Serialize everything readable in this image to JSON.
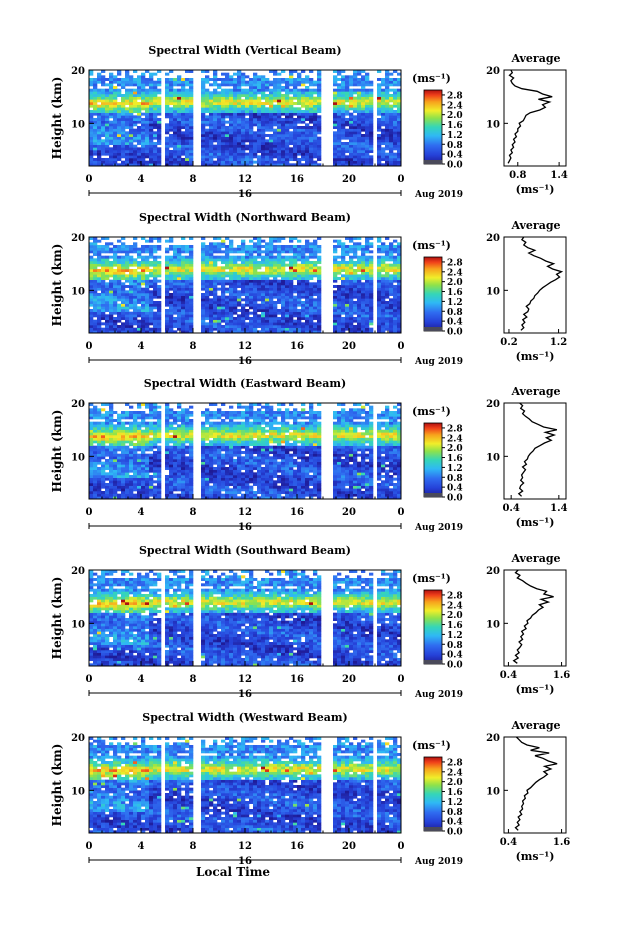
{
  "chart_data": [
    {
      "type": "heatmap",
      "title": "Spectral Width (Vertical Beam)",
      "ylabel": "Height (km)",
      "ylim": [
        2,
        20
      ],
      "yticks": [
        "20",
        "10"
      ],
      "xlim": [
        0,
        24
      ],
      "xticks": [
        "0",
        "4",
        "8",
        "12",
        "16",
        "20",
        "0"
      ],
      "date_label": "16",
      "month_label": "Aug 2019",
      "colorbar": {
        "unit": "(ms⁻¹)",
        "ticks": [
          "2.8",
          "2.4",
          "2.0",
          "1.6",
          "1.2",
          "0.8",
          "0.4",
          "0.0"
        ],
        "range": [
          0,
          3.0
        ]
      },
      "data_gaps_hours": [
        [
          5.4,
          5.9
        ],
        [
          7.9,
          8.5
        ],
        [
          18.0,
          18.7
        ],
        [
          21.7,
          22.2
        ]
      ],
      "average": {
        "title": "Average",
        "xticks": [
          "0.8",
          "1.4"
        ],
        "xlim": [
          0.6,
          1.5
        ],
        "xlabel": "(ms⁻¹)",
        "profile": [
          [
            2.5,
            0.66
          ],
          [
            3,
            0.68
          ],
          [
            3.5,
            0.7
          ],
          [
            4,
            0.68
          ],
          [
            4.5,
            0.72
          ],
          [
            5,
            0.7
          ],
          [
            5.5,
            0.74
          ],
          [
            6,
            0.72
          ],
          [
            6.5,
            0.76
          ],
          [
            7,
            0.74
          ],
          [
            7.5,
            0.78
          ],
          [
            8,
            0.76
          ],
          [
            8.5,
            0.8
          ],
          [
            9,
            0.8
          ],
          [
            9.5,
            0.84
          ],
          [
            10,
            0.82
          ],
          [
            10.5,
            0.88
          ],
          [
            11,
            0.9
          ],
          [
            11.5,
            0.92
          ],
          [
            12,
            0.98
          ],
          [
            12.5,
            1.12
          ],
          [
            13,
            1.2
          ],
          [
            13.5,
            1.16
          ],
          [
            14,
            1.26
          ],
          [
            14.5,
            1.1
          ],
          [
            15,
            1.3
          ],
          [
            15.5,
            1.16
          ],
          [
            16,
            1.08
          ],
          [
            16.5,
            0.86
          ],
          [
            17,
            0.76
          ],
          [
            17.5,
            0.72
          ],
          [
            18,
            0.7
          ],
          [
            18.5,
            0.74
          ],
          [
            19,
            0.68
          ],
          [
            19.5,
            0.72
          ],
          [
            20,
            0.7
          ]
        ]
      }
    },
    {
      "type": "heatmap",
      "title": "Spectral Width (Northward Beam)",
      "ylabel": "Height (km)",
      "ylim": [
        2,
        20
      ],
      "yticks": [
        "20",
        "10"
      ],
      "xlim": [
        0,
        24
      ],
      "xticks": [
        "0",
        "4",
        "8",
        "12",
        "16",
        "20",
        "0"
      ],
      "date_label": "16",
      "month_label": "Aug 2019",
      "colorbar": {
        "unit": "(ms⁻¹)",
        "ticks": [
          "2.8",
          "2.4",
          "2.0",
          "1.6",
          "1.2",
          "0.8",
          "0.4",
          "0.0"
        ],
        "range": [
          0,
          3.0
        ]
      },
      "data_gaps_hours": [
        [
          5.4,
          5.9
        ],
        [
          7.9,
          8.5
        ],
        [
          18.0,
          18.7
        ],
        [
          21.7,
          22.2
        ]
      ],
      "average": {
        "title": "Average",
        "xticks": [
          "0.2",
          "1.2"
        ],
        "xlim": [
          0.1,
          1.35
        ],
        "xlabel": "(ms⁻¹)",
        "profile": [
          [
            2.5,
            0.44
          ],
          [
            3,
            0.5
          ],
          [
            3.5,
            0.46
          ],
          [
            4,
            0.52
          ],
          [
            4.5,
            0.48
          ],
          [
            5,
            0.56
          ],
          [
            5.5,
            0.5
          ],
          [
            6,
            0.58
          ],
          [
            6.5,
            0.6
          ],
          [
            7,
            0.55
          ],
          [
            7.5,
            0.62
          ],
          [
            8,
            0.64
          ],
          [
            8.5,
            0.7
          ],
          [
            9,
            0.72
          ],
          [
            9.5,
            0.78
          ],
          [
            10,
            0.82
          ],
          [
            10.5,
            0.88
          ],
          [
            11,
            0.96
          ],
          [
            11.5,
            1.04
          ],
          [
            12,
            1.14
          ],
          [
            12.5,
            1.22
          ],
          [
            13,
            1.16
          ],
          [
            13.5,
            1.26
          ],
          [
            14,
            1.08
          ],
          [
            14.5,
            0.98
          ],
          [
            15,
            1.1
          ],
          [
            15.5,
            0.94
          ],
          [
            16,
            0.84
          ],
          [
            16.5,
            0.7
          ],
          [
            17,
            0.6
          ],
          [
            17.5,
            0.72
          ],
          [
            18,
            0.58
          ],
          [
            18.5,
            0.5
          ],
          [
            19,
            0.54
          ],
          [
            19.5,
            0.46
          ],
          [
            20,
            0.5
          ]
        ]
      }
    },
    {
      "type": "heatmap",
      "title": "Spectral Width (Eastward Beam)",
      "ylabel": "Height (km)",
      "ylim": [
        2,
        20
      ],
      "yticks": [
        "20",
        "10"
      ],
      "xlim": [
        0,
        24
      ],
      "xticks": [
        "0",
        "4",
        "8",
        "12",
        "16",
        "20",
        "0"
      ],
      "date_label": "16",
      "month_label": "Aug 2019",
      "colorbar": {
        "unit": "(ms⁻¹)",
        "ticks": [
          "2.8",
          "2.4",
          "2.0",
          "1.6",
          "1.2",
          "0.8",
          "0.4",
          "0.0"
        ],
        "range": [
          0,
          3.0
        ]
      },
      "data_gaps_hours": [
        [
          5.4,
          5.9
        ],
        [
          7.9,
          8.5
        ],
        [
          18.0,
          18.7
        ],
        [
          21.7,
          22.2
        ]
      ],
      "average": {
        "title": "Average",
        "xticks": [
          "0.4",
          "1.4"
        ],
        "xlim": [
          0.25,
          1.55
        ],
        "xlabel": "(ms⁻¹)",
        "profile": [
          [
            2.5,
            0.62
          ],
          [
            3,
            0.56
          ],
          [
            3.5,
            0.64
          ],
          [
            4,
            0.58
          ],
          [
            4.5,
            0.6
          ],
          [
            5,
            0.66
          ],
          [
            5.5,
            0.6
          ],
          [
            6,
            0.64
          ],
          [
            6.5,
            0.62
          ],
          [
            7,
            0.66
          ],
          [
            7.5,
            0.7
          ],
          [
            8,
            0.64
          ],
          [
            8.5,
            0.72
          ],
          [
            9,
            0.68
          ],
          [
            9.5,
            0.74
          ],
          [
            10,
            0.76
          ],
          [
            10.5,
            0.8
          ],
          [
            11,
            0.86
          ],
          [
            11.5,
            0.9
          ],
          [
            12,
            1.0
          ],
          [
            12.5,
            1.1
          ],
          [
            13,
            1.24
          ],
          [
            13.5,
            1.14
          ],
          [
            14,
            1.3
          ],
          [
            14.5,
            1.12
          ],
          [
            15,
            1.36
          ],
          [
            15.5,
            1.08
          ],
          [
            16,
            0.96
          ],
          [
            16.5,
            0.84
          ],
          [
            17,
            0.78
          ],
          [
            17.5,
            0.7
          ],
          [
            18,
            0.64
          ],
          [
            18.5,
            0.68
          ],
          [
            19,
            0.6
          ],
          [
            19.5,
            0.64
          ],
          [
            20,
            0.58
          ]
        ]
      }
    },
    {
      "type": "heatmap",
      "title": "Spectral Width (Southward Beam)",
      "ylabel": "Height (km)",
      "ylim": [
        2,
        20
      ],
      "yticks": [
        "20",
        "10"
      ],
      "xlim": [
        0,
        24
      ],
      "xticks": [
        "0",
        "4",
        "8",
        "12",
        "16",
        "20",
        "0"
      ],
      "date_label": "16",
      "month_label": "Aug 2019",
      "colorbar": {
        "unit": "(ms⁻¹)",
        "ticks": [
          "2.8",
          "2.4",
          "2.0",
          "1.6",
          "1.2",
          "0.8",
          "0.4",
          "0.0"
        ],
        "range": [
          0,
          3.0
        ]
      },
      "data_gaps_hours": [
        [
          5.4,
          5.9
        ],
        [
          7.9,
          8.5
        ],
        [
          18.0,
          18.7
        ],
        [
          21.7,
          22.2
        ]
      ],
      "average": {
        "title": "Average",
        "xticks": [
          "0.4",
          "1.6"
        ],
        "xlim": [
          0.3,
          1.7
        ],
        "xlabel": "(ms⁻¹)",
        "profile": [
          [
            2.5,
            0.6
          ],
          [
            3,
            0.52
          ],
          [
            3.5,
            0.62
          ],
          [
            4,
            0.56
          ],
          [
            4.5,
            0.64
          ],
          [
            5,
            0.6
          ],
          [
            5.5,
            0.66
          ],
          [
            6,
            0.7
          ],
          [
            6.5,
            0.64
          ],
          [
            7,
            0.72
          ],
          [
            7.5,
            0.68
          ],
          [
            8,
            0.74
          ],
          [
            8.5,
            0.7
          ],
          [
            9,
            0.8
          ],
          [
            9.5,
            0.76
          ],
          [
            10,
            0.84
          ],
          [
            10.5,
            0.82
          ],
          [
            11,
            0.9
          ],
          [
            11.5,
            0.94
          ],
          [
            12,
            1.02
          ],
          [
            12.5,
            1.08
          ],
          [
            13,
            1.18
          ],
          [
            13.5,
            1.1
          ],
          [
            14,
            1.3
          ],
          [
            14.5,
            1.14
          ],
          [
            15,
            1.42
          ],
          [
            15.5,
            1.2
          ],
          [
            16,
            1.26
          ],
          [
            16.5,
            1.04
          ],
          [
            17,
            0.9
          ],
          [
            17.5,
            0.8
          ],
          [
            18,
            0.72
          ],
          [
            18.5,
            0.6
          ],
          [
            19,
            0.66
          ],
          [
            19.5,
            0.56
          ],
          [
            20,
            0.62
          ]
        ]
      }
    },
    {
      "type": "heatmap",
      "title": "Spectral Width (Westward Beam)",
      "ylabel": "Height (km)",
      "ylim": [
        2,
        20
      ],
      "yticks": [
        "20",
        "10"
      ],
      "xlim": [
        0,
        24
      ],
      "xticks": [
        "0",
        "4",
        "8",
        "12",
        "16",
        "20",
        "0"
      ],
      "date_label": "16",
      "month_label": "Aug 2019",
      "xlabel": "Local Time",
      "colorbar": {
        "unit": "(ms⁻¹)",
        "ticks": [
          "2.8",
          "2.4",
          "2.0",
          "1.6",
          "1.2",
          "0.8",
          "0.4",
          "0.0"
        ],
        "range": [
          0,
          3.0
        ]
      },
      "data_gaps_hours": [
        [
          5.4,
          5.9
        ],
        [
          7.9,
          8.5
        ],
        [
          18.0,
          18.7
        ],
        [
          21.7,
          22.2
        ]
      ],
      "average": {
        "title": "Average",
        "xticks": [
          "0.4",
          "1.6"
        ],
        "xlim": [
          0.3,
          1.7
        ],
        "xlabel": "(ms⁻¹)",
        "profile": [
          [
            2.5,
            0.62
          ],
          [
            3,
            0.56
          ],
          [
            3.5,
            0.64
          ],
          [
            4,
            0.6
          ],
          [
            4.5,
            0.66
          ],
          [
            5,
            0.62
          ],
          [
            5.5,
            0.7
          ],
          [
            6,
            0.66
          ],
          [
            6.5,
            0.72
          ],
          [
            7,
            0.7
          ],
          [
            7.5,
            0.74
          ],
          [
            8,
            0.72
          ],
          [
            8.5,
            0.78
          ],
          [
            9,
            0.76
          ],
          [
            9.5,
            0.84
          ],
          [
            10,
            0.82
          ],
          [
            10.5,
            0.9
          ],
          [
            11,
            0.96
          ],
          [
            11.5,
            1.02
          ],
          [
            12,
            1.1
          ],
          [
            12.5,
            1.2
          ],
          [
            13,
            1.28
          ],
          [
            13.5,
            1.2
          ],
          [
            14,
            1.36
          ],
          [
            14.5,
            1.22
          ],
          [
            15,
            1.5
          ],
          [
            15.5,
            1.3
          ],
          [
            16,
            1.18
          ],
          [
            16.5,
            1.0
          ],
          [
            17,
            1.32
          ],
          [
            17.5,
            0.9
          ],
          [
            18,
            1.1
          ],
          [
            18.5,
            0.82
          ],
          [
            19,
            0.7
          ],
          [
            19.5,
            0.64
          ],
          [
            20,
            0.58
          ]
        ]
      }
    }
  ]
}
